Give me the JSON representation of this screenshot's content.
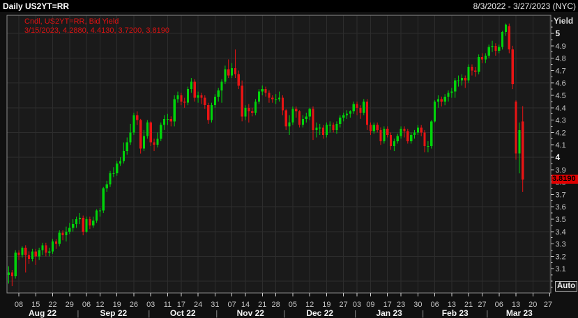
{
  "header": {
    "title": "Daily US2YT=RR",
    "date_range": "8/3/2022 - 3/27/2023 (NYC)"
  },
  "legend": {
    "line1": "Cndl, US2YT=RR, Bid Yield",
    "line2": "3/15/2023, 4.2880, 4.4130, 3.7200, 3.8190"
  },
  "y_axis": {
    "title": "Yield",
    "auto_label": "Auto",
    "ticks": [
      5,
      4.9,
      4.8,
      4.7,
      4.6,
      4.5,
      4.4,
      4.3,
      4.2,
      4.1,
      4,
      3.9,
      3.8,
      3.7,
      3.6,
      3.5,
      3.4,
      3.3,
      3.2,
      3.1
    ],
    "grid_values": [
      3.0,
      3.2,
      3.4,
      3.6,
      3.8,
      4.0,
      4.2,
      4.4,
      4.6,
      4.8,
      5.0
    ],
    "last_price": {
      "label": "3.8190",
      "value": 3.819
    }
  },
  "x_axis": {
    "day_ticks": [
      {
        "s": 3,
        "t": "08"
      },
      {
        "s": 8,
        "t": "15"
      },
      {
        "s": 13,
        "t": "22"
      },
      {
        "s": 18,
        "t": "29"
      },
      {
        "s": 23,
        "t": "06"
      },
      {
        "s": 27,
        "t": "12"
      },
      {
        "s": 32,
        "t": "19"
      },
      {
        "s": 37,
        "t": "26"
      },
      {
        "s": 42,
        "t": "03"
      },
      {
        "s": 47,
        "t": "11"
      },
      {
        "s": 51,
        "t": "17"
      },
      {
        "s": 56,
        "t": "24"
      },
      {
        "s": 61,
        "t": "31"
      },
      {
        "s": 66,
        "t": "07"
      },
      {
        "s": 70,
        "t": "14"
      },
      {
        "s": 75,
        "t": "21"
      },
      {
        "s": 79,
        "t": "28"
      },
      {
        "s": 84,
        "t": "05"
      },
      {
        "s": 89,
        "t": "12"
      },
      {
        "s": 94,
        "t": "19"
      },
      {
        "s": 99,
        "t": "27"
      },
      {
        "s": 103,
        "t": "03"
      },
      {
        "s": 107,
        "t": "09"
      },
      {
        "s": 112,
        "t": "17"
      },
      {
        "s": 116,
        "t": "23"
      },
      {
        "s": 121,
        "t": "30"
      },
      {
        "s": 126,
        "t": "06"
      },
      {
        "s": 131,
        "t": "13"
      },
      {
        "s": 136,
        "t": "21"
      },
      {
        "s": 140,
        "t": "27"
      },
      {
        "s": 145,
        "t": "06"
      },
      {
        "s": 150,
        "t": "13"
      },
      {
        "s": 155,
        "t": "20"
      },
      {
        "s": 160,
        "t": "27"
      }
    ],
    "months": [
      {
        "t": "Aug 22",
        "a": 0,
        "b": 20
      },
      {
        "t": "Sep 22",
        "a": 21,
        "b": 41
      },
      {
        "t": "Oct 22",
        "a": 42,
        "b": 61
      },
      {
        "t": "Nov 22",
        "a": 62,
        "b": 81
      },
      {
        "t": "Dec 22",
        "a": 82,
        "b": 102
      },
      {
        "t": "Jan 23",
        "a": 103,
        "b": 122
      },
      {
        "t": "Feb 23",
        "a": 123,
        "b": 141
      },
      {
        "t": "Mar 23",
        "a": 142,
        "b": 160
      }
    ]
  },
  "colors": {
    "up": "#00d40a",
    "down": "#e81414",
    "grid": "#2d2d2d",
    "plot_bg": "#1a1a1a",
    "frame": "#8c8c8c",
    "tick": "#cfcfcf",
    "axis_text": "#c6c6c6",
    "axis_text_strong": "#f0f0f0",
    "month_text": "#f2f2f2",
    "separator": "#9a9a9a",
    "last_price_bg": "#e00000",
    "legend": "#e01212"
  },
  "chart_data": {
    "type": "candlestick",
    "symbol": "US2YT=RR",
    "field": "Bid Yield",
    "interval": "Daily",
    "title": "Daily US2YT=RR",
    "ylabel": "Yield",
    "date_range": "8/3/2022 - 3/27/2023 (NYC)",
    "ylim": [
      2.9,
      5.15
    ],
    "grid": "on",
    "last_candle": {
      "date": "3/15/2023",
      "open": 4.288,
      "high": 4.413,
      "low": 3.72,
      "close": 3.819
    },
    "candles": [
      [
        3.05,
        3.12,
        2.98,
        3.07
      ],
      [
        3.07,
        3.09,
        2.96,
        3.04
      ],
      [
        3.04,
        3.25,
        3.02,
        3.23
      ],
      [
        3.23,
        3.25,
        3.17,
        3.21
      ],
      [
        3.21,
        3.28,
        3.19,
        3.27
      ],
      [
        3.27,
        3.29,
        3.07,
        3.21
      ],
      [
        3.21,
        3.24,
        3.14,
        3.18
      ],
      [
        3.18,
        3.26,
        3.16,
        3.24
      ],
      [
        3.24,
        3.26,
        3.13,
        3.2
      ],
      [
        3.2,
        3.27,
        3.17,
        3.25
      ],
      [
        3.25,
        3.31,
        3.21,
        3.29
      ],
      [
        3.29,
        3.31,
        3.2,
        3.23
      ],
      [
        3.23,
        3.27,
        3.2,
        3.24
      ],
      [
        3.24,
        3.34,
        3.22,
        3.32
      ],
      [
        3.32,
        3.34,
        3.26,
        3.3
      ],
      [
        3.3,
        3.41,
        3.28,
        3.39
      ],
      [
        3.39,
        3.41,
        3.33,
        3.37
      ],
      [
        3.37,
        3.44,
        3.32,
        3.4
      ],
      [
        3.4,
        3.47,
        3.38,
        3.43
      ],
      [
        3.43,
        3.5,
        3.4,
        3.46
      ],
      [
        3.46,
        3.52,
        3.43,
        3.5
      ],
      [
        3.5,
        3.55,
        3.46,
        3.51
      ],
      [
        3.51,
        3.53,
        3.37,
        3.4
      ],
      [
        3.4,
        3.52,
        3.39,
        3.5
      ],
      [
        3.5,
        3.52,
        3.42,
        3.45
      ],
      [
        3.45,
        3.52,
        3.43,
        3.49
      ],
      [
        3.49,
        3.58,
        3.47,
        3.57
      ],
      [
        3.57,
        3.59,
        3.52,
        3.57
      ],
      [
        3.57,
        3.76,
        3.55,
        3.75
      ],
      [
        3.75,
        3.81,
        3.72,
        3.78
      ],
      [
        3.78,
        3.89,
        3.76,
        3.87
      ],
      [
        3.87,
        3.92,
        3.84,
        3.87
      ],
      [
        3.87,
        3.97,
        3.85,
        3.95
      ],
      [
        3.95,
        4.0,
        3.93,
        3.97
      ],
      [
        3.97,
        4.12,
        3.95,
        4.05
      ],
      [
        4.05,
        4.16,
        4.02,
        4.12
      ],
      [
        4.12,
        4.27,
        4.1,
        4.2
      ],
      [
        4.2,
        4.36,
        4.18,
        4.34
      ],
      [
        4.34,
        4.37,
        4.26,
        4.3
      ],
      [
        4.3,
        4.31,
        4.03,
        4.07
      ],
      [
        4.07,
        4.22,
        4.05,
        4.17
      ],
      [
        4.17,
        4.3,
        4.15,
        4.28
      ],
      [
        4.28,
        4.29,
        4.09,
        4.12
      ],
      [
        4.12,
        4.15,
        4.05,
        4.1
      ],
      [
        4.1,
        4.2,
        4.08,
        4.15
      ],
      [
        4.15,
        4.28,
        4.13,
        4.26
      ],
      [
        4.26,
        4.34,
        4.22,
        4.31
      ],
      [
        4.31,
        4.35,
        4.26,
        4.31
      ],
      [
        4.31,
        4.33,
        4.25,
        4.29
      ],
      [
        4.29,
        4.5,
        4.25,
        4.47
      ],
      [
        4.47,
        4.53,
        4.44,
        4.5
      ],
      [
        4.5,
        4.52,
        4.42,
        4.45
      ],
      [
        4.45,
        4.48,
        4.4,
        4.44
      ],
      [
        4.44,
        4.57,
        4.42,
        4.55
      ],
      [
        4.55,
        4.64,
        4.52,
        4.61
      ],
      [
        4.61,
        4.63,
        4.45,
        4.48
      ],
      [
        4.48,
        4.53,
        4.44,
        4.5
      ],
      [
        4.5,
        4.52,
        4.43,
        4.48
      ],
      [
        4.48,
        4.5,
        4.39,
        4.42
      ],
      [
        4.42,
        4.44,
        4.27,
        4.3
      ],
      [
        4.3,
        4.44,
        4.28,
        4.42
      ],
      [
        4.42,
        4.51,
        4.4,
        4.49
      ],
      [
        4.49,
        4.56,
        4.45,
        4.54
      ],
      [
        4.54,
        4.63,
        4.44,
        4.61
      ],
      [
        4.61,
        4.74,
        4.59,
        4.71
      ],
      [
        4.71,
        4.79,
        4.64,
        4.66
      ],
      [
        4.66,
        4.76,
        4.64,
        4.72
      ],
      [
        4.72,
        4.87,
        4.64,
        4.67
      ],
      [
        4.67,
        4.7,
        4.55,
        4.58
      ],
      [
        4.58,
        4.62,
        4.29,
        4.33
      ],
      [
        4.33,
        4.42,
        4.3,
        4.4
      ],
      [
        4.4,
        4.43,
        4.28,
        4.37
      ],
      [
        4.37,
        4.4,
        4.33,
        4.36
      ],
      [
        4.36,
        4.47,
        4.34,
        4.45
      ],
      [
        4.45,
        4.55,
        4.43,
        4.53
      ],
      [
        4.53,
        4.58,
        4.5,
        4.55
      ],
      [
        4.55,
        4.57,
        4.49,
        4.52
      ],
      [
        4.52,
        4.54,
        4.44,
        4.48
      ],
      [
        4.48,
        4.5,
        4.44,
        4.47
      ],
      [
        4.47,
        4.51,
        4.43,
        4.47
      ],
      [
        4.47,
        4.53,
        4.45,
        4.48
      ],
      [
        4.48,
        4.5,
        4.34,
        4.38
      ],
      [
        4.38,
        4.39,
        4.22,
        4.25
      ],
      [
        4.25,
        4.34,
        4.18,
        4.28
      ],
      [
        4.28,
        4.41,
        4.26,
        4.39
      ],
      [
        4.39,
        4.41,
        4.32,
        4.37
      ],
      [
        4.37,
        4.38,
        4.24,
        4.26
      ],
      [
        4.26,
        4.34,
        4.24,
        4.31
      ],
      [
        4.31,
        4.36,
        4.28,
        4.33
      ],
      [
        4.33,
        4.4,
        4.3,
        4.39
      ],
      [
        4.39,
        4.41,
        4.14,
        4.22
      ],
      [
        4.22,
        4.28,
        4.16,
        4.24
      ],
      [
        4.24,
        4.27,
        4.18,
        4.24
      ],
      [
        4.24,
        4.26,
        4.15,
        4.18
      ],
      [
        4.18,
        4.28,
        4.16,
        4.26
      ],
      [
        4.26,
        4.29,
        4.2,
        4.26
      ],
      [
        4.26,
        4.28,
        4.2,
        4.22
      ],
      [
        4.22,
        4.29,
        4.19,
        4.27
      ],
      [
        4.27,
        4.34,
        4.24,
        4.32
      ],
      [
        4.32,
        4.36,
        4.29,
        4.34
      ],
      [
        4.34,
        4.38,
        4.31,
        4.35
      ],
      [
        4.35,
        4.38,
        4.32,
        4.37
      ],
      [
        4.37,
        4.45,
        4.35,
        4.43
      ],
      [
        4.43,
        4.45,
        4.34,
        4.4
      ],
      [
        4.4,
        4.42,
        4.31,
        4.36
      ],
      [
        4.36,
        4.47,
        4.34,
        4.45
      ],
      [
        4.45,
        4.47,
        4.22,
        4.26
      ],
      [
        4.26,
        4.28,
        4.18,
        4.21
      ],
      [
        4.21,
        4.28,
        4.19,
        4.26
      ],
      [
        4.26,
        4.28,
        4.2,
        4.22
      ],
      [
        4.22,
        4.24,
        4.1,
        4.13
      ],
      [
        4.13,
        4.25,
        4.11,
        4.23
      ],
      [
        4.23,
        4.25,
        4.16,
        4.18
      ],
      [
        4.18,
        4.2,
        4.06,
        4.09
      ],
      [
        4.09,
        4.15,
        4.05,
        4.13
      ],
      [
        4.13,
        4.19,
        4.11,
        4.17
      ],
      [
        4.17,
        4.25,
        4.15,
        4.23
      ],
      [
        4.23,
        4.25,
        4.16,
        4.21
      ],
      [
        4.21,
        4.23,
        4.11,
        4.13
      ],
      [
        4.13,
        4.2,
        4.11,
        4.18
      ],
      [
        4.18,
        4.22,
        4.15,
        4.2
      ],
      [
        4.2,
        4.26,
        4.18,
        4.24
      ],
      [
        4.24,
        4.26,
        4.17,
        4.2
      ],
      [
        4.2,
        4.22,
        4.04,
        4.09
      ],
      [
        4.09,
        4.13,
        4.04,
        4.09
      ],
      [
        4.09,
        4.3,
        4.07,
        4.29
      ],
      [
        4.29,
        4.46,
        4.28,
        4.45
      ],
      [
        4.45,
        4.5,
        4.4,
        4.47
      ],
      [
        4.47,
        4.49,
        4.41,
        4.45
      ],
      [
        4.45,
        4.51,
        4.42,
        4.49
      ],
      [
        4.49,
        4.54,
        4.45,
        4.52
      ],
      [
        4.52,
        4.56,
        4.48,
        4.53
      ],
      [
        4.53,
        4.64,
        4.48,
        4.62
      ],
      [
        4.62,
        4.66,
        4.57,
        4.62
      ],
      [
        4.62,
        4.67,
        4.58,
        4.64
      ],
      [
        4.64,
        4.66,
        4.56,
        4.62
      ],
      [
        4.62,
        4.75,
        4.6,
        4.73
      ],
      [
        4.73,
        4.75,
        4.66,
        4.7
      ],
      [
        4.7,
        4.73,
        4.65,
        4.69
      ],
      [
        4.69,
        4.83,
        4.67,
        4.81
      ],
      [
        4.81,
        4.84,
        4.76,
        4.79
      ],
      [
        4.79,
        4.84,
        4.76,
        4.82
      ],
      [
        4.82,
        4.91,
        4.8,
        4.89
      ],
      [
        4.89,
        4.94,
        4.85,
        4.9
      ],
      [
        4.9,
        4.92,
        4.82,
        4.86
      ],
      [
        4.86,
        4.91,
        4.84,
        4.89
      ],
      [
        4.89,
        5.02,
        4.87,
        5.01
      ],
      [
        5.01,
        5.08,
        4.98,
        5.07
      ],
      [
        5.06,
        5.08,
        4.84,
        4.87
      ],
      [
        4.87,
        4.9,
        4.55,
        4.59
      ],
      [
        4.45,
        4.46,
        3.98,
        4.03
      ],
      [
        4.03,
        4.28,
        3.87,
        4.22
      ],
      [
        4.288,
        4.413,
        3.72,
        3.819
      ]
    ]
  }
}
